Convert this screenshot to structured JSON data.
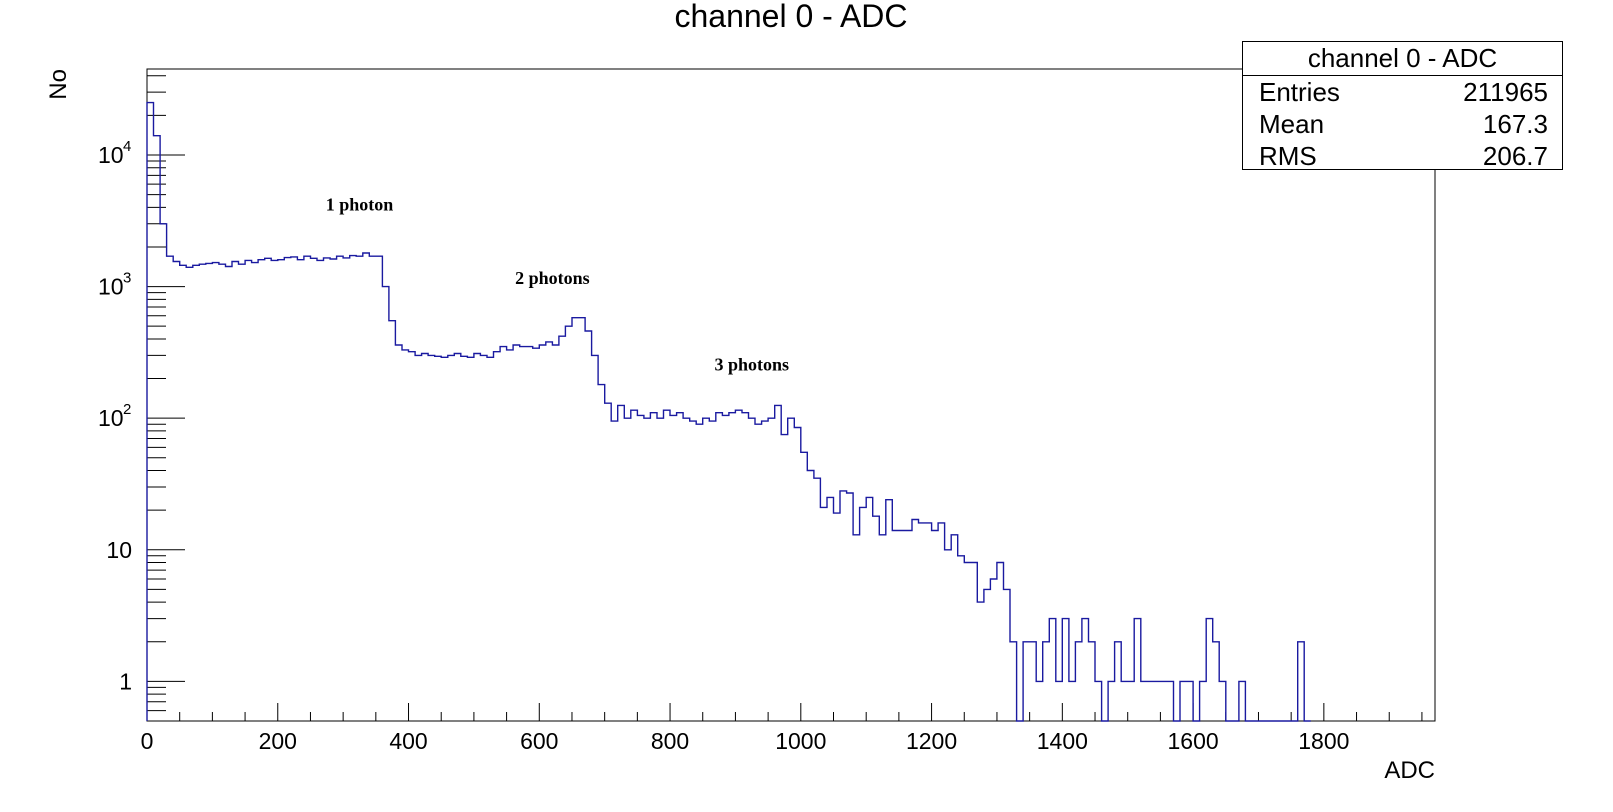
{
  "chart_data": {
    "type": "histogram",
    "title": "channel 0 - ADC",
    "xlabel": "ADC",
    "ylabel": "No",
    "xlim": [
      0,
      1970
    ],
    "ylim": [
      0.5,
      45000
    ],
    "yscale": "log",
    "line_color": "#1a1aa0",
    "bin_width": 10,
    "x_ticks": [
      0,
      200,
      400,
      600,
      800,
      1000,
      1200,
      1400,
      1600,
      1800
    ],
    "y_ticks": [
      {
        "value": 1,
        "label": "1"
      },
      {
        "value": 10,
        "label": "10"
      },
      {
        "value": 100,
        "base": "10",
        "exp": "2"
      },
      {
        "value": 1000,
        "base": "10",
        "exp": "3"
      },
      {
        "value": 10000,
        "base": "10",
        "exp": "4"
      }
    ],
    "bins": [
      [
        0,
        25000
      ],
      [
        10,
        14000
      ],
      [
        20,
        3000
      ],
      [
        30,
        1700
      ],
      [
        40,
        1550
      ],
      [
        50,
        1450
      ],
      [
        60,
        1400
      ],
      [
        70,
        1450
      ],
      [
        80,
        1480
      ],
      [
        90,
        1500
      ],
      [
        100,
        1520
      ],
      [
        110,
        1480
      ],
      [
        120,
        1420
      ],
      [
        130,
        1550
      ],
      [
        140,
        1480
      ],
      [
        150,
        1580
      ],
      [
        160,
        1520
      ],
      [
        170,
        1600
      ],
      [
        180,
        1640
      ],
      [
        190,
        1580
      ],
      [
        200,
        1600
      ],
      [
        210,
        1660
      ],
      [
        220,
        1680
      ],
      [
        230,
        1600
      ],
      [
        240,
        1700
      ],
      [
        250,
        1640
      ],
      [
        260,
        1580
      ],
      [
        270,
        1650
      ],
      [
        280,
        1620
      ],
      [
        290,
        1700
      ],
      [
        300,
        1650
      ],
      [
        310,
        1720
      ],
      [
        320,
        1700
      ],
      [
        330,
        1800
      ],
      [
        340,
        1700
      ],
      [
        350,
        1700
      ],
      [
        360,
        1000
      ],
      [
        370,
        550
      ],
      [
        380,
        360
      ],
      [
        390,
        330
      ],
      [
        400,
        320
      ],
      [
        410,
        300
      ],
      [
        420,
        310
      ],
      [
        430,
        300
      ],
      [
        440,
        295
      ],
      [
        450,
        290
      ],
      [
        460,
        300
      ],
      [
        470,
        310
      ],
      [
        480,
        295
      ],
      [
        490,
        290
      ],
      [
        500,
        310
      ],
      [
        510,
        300
      ],
      [
        520,
        290
      ],
      [
        530,
        320
      ],
      [
        540,
        350
      ],
      [
        550,
        330
      ],
      [
        560,
        360
      ],
      [
        570,
        350
      ],
      [
        580,
        350
      ],
      [
        590,
        340
      ],
      [
        600,
        360
      ],
      [
        610,
        380
      ],
      [
        620,
        360
      ],
      [
        630,
        420
      ],
      [
        640,
        500
      ],
      [
        650,
        580
      ],
      [
        660,
        580
      ],
      [
        670,
        460
      ],
      [
        680,
        300
      ],
      [
        690,
        180
      ],
      [
        700,
        130
      ],
      [
        710,
        95
      ],
      [
        720,
        125
      ],
      [
        730,
        100
      ],
      [
        740,
        115
      ],
      [
        750,
        105
      ],
      [
        760,
        100
      ],
      [
        770,
        110
      ],
      [
        780,
        100
      ],
      [
        790,
        115
      ],
      [
        800,
        105
      ],
      [
        810,
        110
      ],
      [
        820,
        100
      ],
      [
        830,
        95
      ],
      [
        840,
        90
      ],
      [
        850,
        100
      ],
      [
        860,
        95
      ],
      [
        870,
        110
      ],
      [
        880,
        105
      ],
      [
        890,
        110
      ],
      [
        900,
        115
      ],
      [
        910,
        110
      ],
      [
        920,
        100
      ],
      [
        930,
        90
      ],
      [
        940,
        95
      ],
      [
        950,
        100
      ],
      [
        960,
        125
      ],
      [
        970,
        75
      ],
      [
        980,
        100
      ],
      [
        990,
        85
      ],
      [
        1000,
        55
      ],
      [
        1010,
        40
      ],
      [
        1020,
        35
      ],
      [
        1030,
        21
      ],
      [
        1040,
        25
      ],
      [
        1050,
        19
      ],
      [
        1060,
        28
      ],
      [
        1070,
        27
      ],
      [
        1080,
        13
      ],
      [
        1090,
        21
      ],
      [
        1100,
        25
      ],
      [
        1110,
        18
      ],
      [
        1120,
        13
      ],
      [
        1130,
        24
      ],
      [
        1140,
        14
      ],
      [
        1150,
        14
      ],
      [
        1160,
        14
      ],
      [
        1170,
        17
      ],
      [
        1180,
        16
      ],
      [
        1190,
        16
      ],
      [
        1200,
        14
      ],
      [
        1210,
        16
      ],
      [
        1220,
        10
      ],
      [
        1230,
        13
      ],
      [
        1240,
        9
      ],
      [
        1250,
        8
      ],
      [
        1260,
        8
      ],
      [
        1270,
        4
      ],
      [
        1280,
        5
      ],
      [
        1290,
        6
      ],
      [
        1300,
        8
      ],
      [
        1310,
        5
      ],
      [
        1320,
        2
      ],
      [
        1330,
        0.1
      ],
      [
        1340,
        2
      ],
      [
        1350,
        2
      ],
      [
        1360,
        1
      ],
      [
        1370,
        2
      ],
      [
        1380,
        3
      ],
      [
        1390,
        1
      ],
      [
        1400,
        3
      ],
      [
        1410,
        1
      ],
      [
        1420,
        2
      ],
      [
        1430,
        3
      ],
      [
        1440,
        2
      ],
      [
        1450,
        1
      ],
      [
        1460,
        0.1
      ],
      [
        1470,
        1
      ],
      [
        1480,
        2
      ],
      [
        1490,
        1
      ],
      [
        1500,
        1
      ],
      [
        1510,
        3
      ],
      [
        1520,
        1
      ],
      [
        1530,
        1
      ],
      [
        1540,
        1
      ],
      [
        1550,
        1
      ],
      [
        1560,
        1
      ],
      [
        1570,
        0.1
      ],
      [
        1580,
        1
      ],
      [
        1590,
        1
      ],
      [
        1600,
        0.1
      ],
      [
        1610,
        1
      ],
      [
        1620,
        3
      ],
      [
        1630,
        2
      ],
      [
        1640,
        1
      ],
      [
        1650,
        0.1
      ],
      [
        1660,
        0.1
      ],
      [
        1670,
        1
      ],
      [
        1680,
        0.1
      ],
      [
        1690,
        0.1
      ],
      [
        1700,
        0.1
      ],
      [
        1710,
        0.1
      ],
      [
        1720,
        0.1
      ],
      [
        1730,
        0.1
      ],
      [
        1740,
        0.1
      ],
      [
        1750,
        0.1
      ],
      [
        1760,
        2
      ],
      [
        1770,
        0.1
      ]
    ],
    "annotations": [
      {
        "text": "1 photon",
        "x": 325,
        "y": 3800
      },
      {
        "text": "2 photons",
        "x": 620,
        "y": 1050
      },
      {
        "text": "3 photons",
        "x": 925,
        "y": 230
      }
    ],
    "stats_box": {
      "title": "channel 0 - ADC",
      "rows": [
        {
          "label": "Entries",
          "value": "211965"
        },
        {
          "label": "Mean",
          "value": "167.3"
        },
        {
          "label": "RMS",
          "value": "206.7"
        }
      ]
    }
  }
}
